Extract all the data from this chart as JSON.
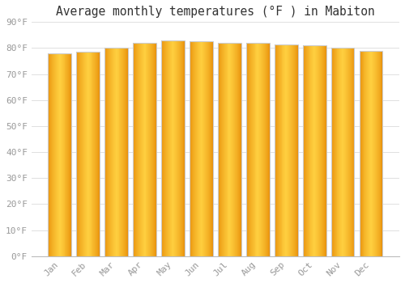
{
  "title": "Average monthly temperatures (°F ) in Mabiton",
  "months": [
    "Jan",
    "Feb",
    "Mar",
    "Apr",
    "May",
    "Jun",
    "Jul",
    "Aug",
    "Sep",
    "Oct",
    "Nov",
    "Dec"
  ],
  "values": [
    78,
    78.5,
    80,
    82,
    83,
    82.5,
    82,
    82,
    81.5,
    81,
    80,
    79
  ],
  "ylim": [
    0,
    90
  ],
  "yticks": [
    0,
    10,
    20,
    30,
    40,
    50,
    60,
    70,
    80,
    90
  ],
  "ytick_labels": [
    "0°F",
    "10°F",
    "20°F",
    "30°F",
    "40°F",
    "50°F",
    "60°F",
    "70°F",
    "80°F",
    "90°F"
  ],
  "bar_color_outer": "#E8900A",
  "bar_color_inner": "#FFD040",
  "bar_edge_color": "#CCCCCC",
  "background_color": "#FFFFFF",
  "plot_bg_color": "#FFFFFF",
  "grid_color": "#E0E0E0",
  "title_fontsize": 10.5,
  "tick_fontsize": 8,
  "font_family": "monospace",
  "tick_color": "#999999"
}
